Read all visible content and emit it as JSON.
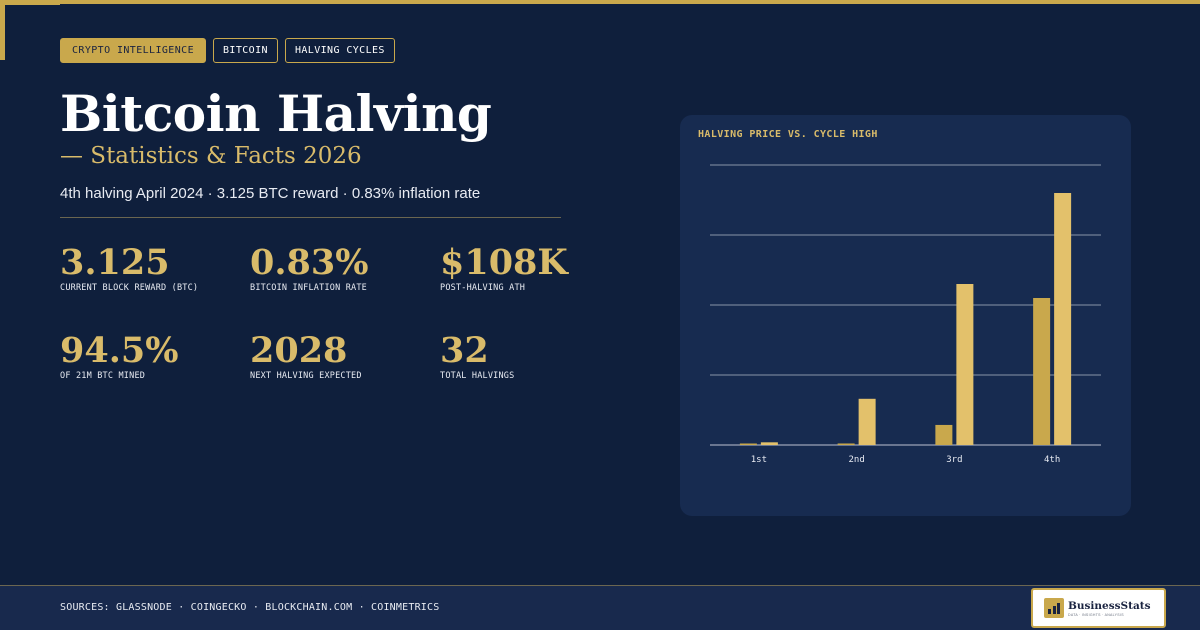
{
  "tags": [
    "CRYPTO INTELLIGENCE",
    "BITCOIN",
    "HALVING CYCLES"
  ],
  "title": "Bitcoin Halving",
  "subtitle": "— Statistics & Facts 2026",
  "tagline": "4th halving April 2024 · 3.125 BTC reward · 0.83% inflation rate",
  "stats": [
    {
      "value": "3.125",
      "label": "CURRENT BLOCK REWARD (BTC)"
    },
    {
      "value": "0.83%",
      "label": "BITCOIN INFLATION RATE"
    },
    {
      "value": "$108K",
      "label": "POST-HALVING ATH"
    },
    {
      "value": "94.5%",
      "label": "OF 21M BTC MINED"
    },
    {
      "value": "2028",
      "label": "NEXT HALVING EXPECTED"
    },
    {
      "value": "32",
      "label": "TOTAL HALVINGS"
    }
  ],
  "chart_data": {
    "type": "bar",
    "title": "HALVING PRICE VS. CYCLE HIGH",
    "categories": [
      "1st",
      "2nd",
      "3rd",
      "4th"
    ],
    "series": [
      {
        "values": [
          12,
          650,
          8600,
          63000
        ],
        "color": "#c9a84c"
      },
      {
        "values": [
          1150,
          19800,
          69000,
          108000
        ],
        "color": "#e3c16b"
      }
    ],
    "ylim": [
      0,
      120000
    ],
    "grid": true,
    "legend": "none"
  },
  "footer": {
    "sources": "SOURCES: GLASSNODE · COINGECKO · BLOCKCHAIN.COM · COINMETRICS",
    "logo_name": "BusinessStats",
    "logo_sub": "DATA · INSIGHTS · ANALYSIS"
  },
  "colors": {
    "background": "#0f1f3c",
    "card": "#172b50",
    "accent": "#c9a84c",
    "accent_light": "#e3c16b"
  }
}
